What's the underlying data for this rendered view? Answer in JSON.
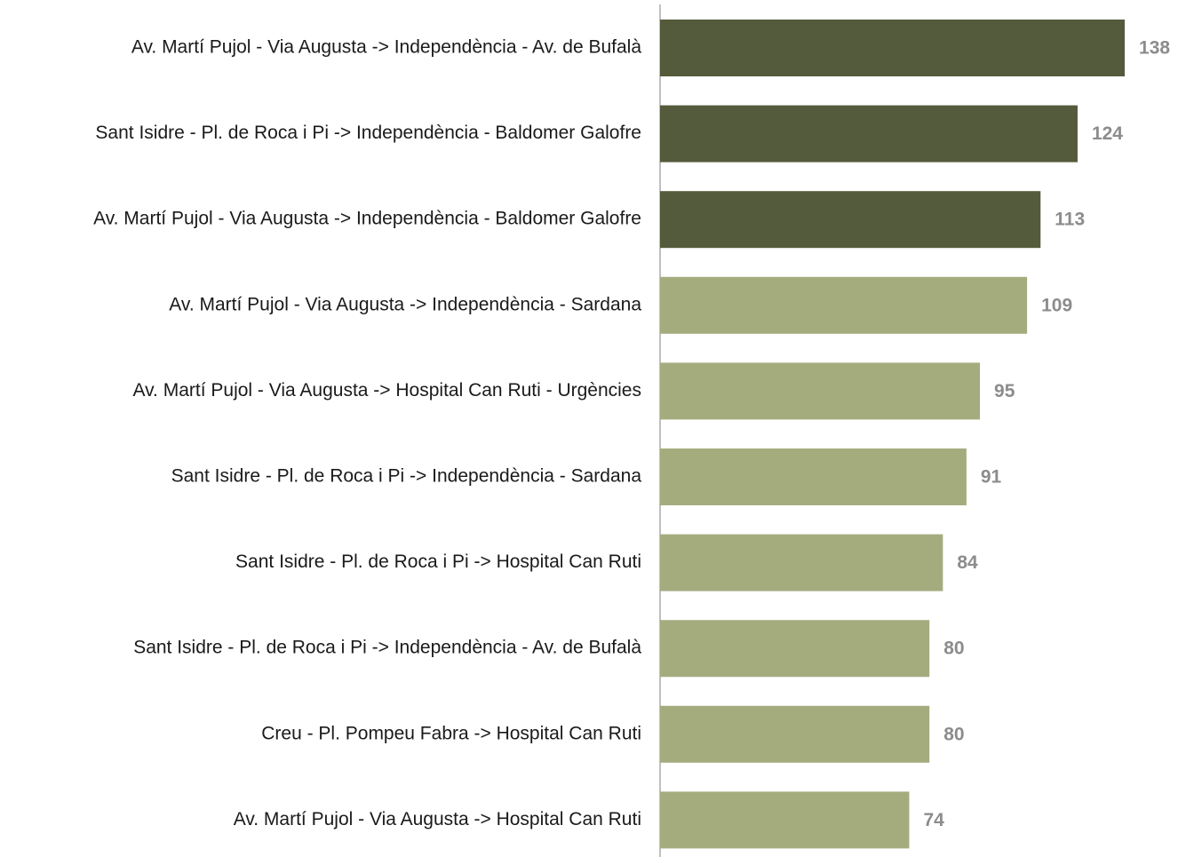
{
  "chart_data": {
    "type": "barh",
    "categories": [
      "Av. Martí Pujol - Via Augusta -> Independència - Av. de Bufalà",
      "Sant Isidre - Pl. de Roca i Pi -> Independència - Baldomer Galofre",
      "Av. Martí Pujol - Via Augusta -> Independència - Baldomer Galofre",
      "Av. Martí Pujol - Via Augusta -> Independència - Sardana",
      "Av. Martí Pujol - Via Augusta -> Hospital Can Ruti - Urgències",
      "Sant Isidre - Pl. de Roca i Pi -> Independència - Sardana",
      "Sant Isidre - Pl. de Roca i Pi -> Hospital Can Ruti",
      "Sant Isidre - Pl. de Roca i Pi -> Independència - Av. de Bufalà",
      "Creu - Pl. Pompeu Fabra -> Hospital Can Ruti",
      "Av. Martí Pujol - Via Augusta -> Hospital Can Ruti"
    ],
    "values": [
      138,
      124,
      113,
      109,
      95,
      91,
      84,
      80,
      80,
      74
    ],
    "colors": [
      "#545a3c",
      "#545a3c",
      "#545a3c",
      "#a4ac7e",
      "#a4ac7e",
      "#a4ac7e",
      "#a4ac7e",
      "#a4ac7e",
      "#a4ac7e",
      "#a4ac7e"
    ],
    "xlim": [
      0,
      150
    ]
  }
}
